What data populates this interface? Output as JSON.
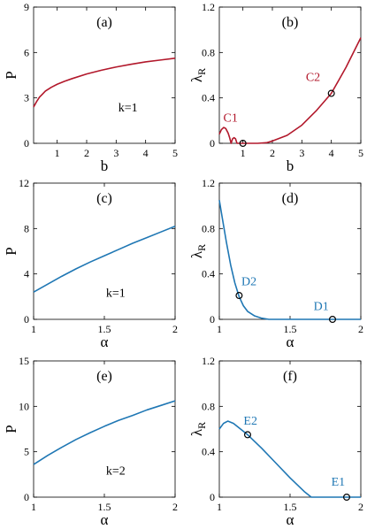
{
  "colors": {
    "red": "#b2182b",
    "blue": "#1f77b4"
  },
  "chart_data": [
    {
      "type": "line",
      "panel": "(a)",
      "xlabel": "b",
      "ylabel": "P",
      "xlim": [
        0.2,
        5
      ],
      "ylim": [
        0,
        9
      ],
      "xticks": [
        1,
        2,
        3,
        4,
        5
      ],
      "yticks": [
        0,
        3,
        6,
        9
      ],
      "color": "red",
      "x": [
        0.2,
        0.3,
        0.4,
        0.5,
        0.6,
        0.8,
        1.0,
        1.25,
        1.5,
        2.0,
        2.5,
        3.0,
        3.5,
        4.0,
        4.5,
        5.0
      ],
      "y": [
        2.4,
        2.75,
        3.05,
        3.25,
        3.45,
        3.7,
        3.9,
        4.1,
        4.27,
        4.58,
        4.83,
        5.04,
        5.22,
        5.38,
        5.5,
        5.62
      ],
      "annotations": [
        {
          "text": "k=1",
          "x": 3.4,
          "y": 2.1,
          "color": "black"
        }
      ],
      "markers": []
    },
    {
      "type": "line",
      "panel": "(b)",
      "xlabel": "b",
      "ylabel": "λ",
      "ylabel_sub": "R",
      "xlim": [
        0.2,
        5
      ],
      "ylim": [
        0,
        1.2
      ],
      "xticks": [
        1,
        2,
        3,
        4,
        5
      ],
      "yticks": [
        0,
        0.4,
        0.8,
        1.2
      ],
      "color": "red",
      "x": [
        0.2,
        0.27,
        0.35,
        0.42,
        0.5,
        0.55,
        0.6,
        0.65,
        0.7,
        0.75,
        0.8,
        1.0,
        1.5,
        1.8,
        2.0,
        2.5,
        3.0,
        3.5,
        4.0,
        4.5,
        5.0
      ],
      "y": [
        0.08,
        0.12,
        0.14,
        0.13,
        0.09,
        0.05,
        0.0,
        0.04,
        0.05,
        0.04,
        0.0,
        0.0,
        0.0,
        0.005,
        0.02,
        0.07,
        0.16,
        0.29,
        0.44,
        0.67,
        0.93
      ],
      "annotations": [
        {
          "text": "C1",
          "x": 0.58,
          "y": 0.19,
          "color": "red"
        },
        {
          "text": "C2",
          "x": 3.38,
          "y": 0.55,
          "color": "red"
        }
      ],
      "markers": [
        {
          "x": 1.0,
          "y": 0.0
        },
        {
          "x": 4.0,
          "y": 0.44
        }
      ]
    },
    {
      "type": "line",
      "panel": "(c)",
      "xlabel": "α",
      "ylabel": "P",
      "xlim": [
        1,
        2
      ],
      "ylim": [
        0,
        12
      ],
      "xticks": [
        1,
        1.5,
        2
      ],
      "yticks": [
        0,
        4,
        8,
        12
      ],
      "color": "blue",
      "x": [
        1.0,
        1.1,
        1.2,
        1.3,
        1.4,
        1.5,
        1.6,
        1.7,
        1.8,
        1.9,
        2.0
      ],
      "y": [
        2.4,
        3.1,
        3.8,
        4.45,
        5.05,
        5.6,
        6.15,
        6.7,
        7.2,
        7.7,
        8.2
      ],
      "annotations": [
        {
          "text": "k=1",
          "x": 1.58,
          "y": 2.0,
          "color": "black"
        }
      ],
      "markers": []
    },
    {
      "type": "line",
      "panel": "(d)",
      "xlabel": "α",
      "ylabel": "λ",
      "ylabel_sub": "R",
      "xlim": [
        1,
        2
      ],
      "ylim": [
        0,
        1.2
      ],
      "xticks": [
        1,
        1.5,
        2
      ],
      "yticks": [
        0,
        0.4,
        0.8,
        1.2
      ],
      "color": "blue",
      "x": [
        1.0,
        1.02,
        1.05,
        1.08,
        1.11,
        1.14,
        1.17,
        1.2,
        1.25,
        1.3,
        1.35,
        1.4,
        1.5,
        2.0
      ],
      "y": [
        1.05,
        0.9,
        0.68,
        0.48,
        0.32,
        0.2,
        0.12,
        0.07,
        0.03,
        0.01,
        0.0,
        0.0,
        0.0,
        0.0
      ],
      "annotations": [
        {
          "text": "D2",
          "x": 1.21,
          "y": 0.3,
          "color": "blue"
        },
        {
          "text": "D1",
          "x": 1.72,
          "y": 0.08,
          "color": "blue"
        }
      ],
      "markers": [
        {
          "x": 1.14,
          "y": 0.21
        },
        {
          "x": 1.8,
          "y": 0.0
        }
      ]
    },
    {
      "type": "line",
      "panel": "(e)",
      "xlabel": "α",
      "ylabel": "P",
      "xlim": [
        1,
        2
      ],
      "ylim": [
        0,
        15
      ],
      "xticks": [
        1,
        1.5,
        2
      ],
      "yticks": [
        0,
        5,
        10,
        15
      ],
      "color": "blue",
      "x": [
        1.0,
        1.1,
        1.2,
        1.3,
        1.4,
        1.5,
        1.6,
        1.7,
        1.8,
        1.9,
        2.0
      ],
      "y": [
        3.6,
        4.6,
        5.5,
        6.35,
        7.1,
        7.8,
        8.45,
        9.0,
        9.6,
        10.1,
        10.6
      ],
      "annotations": [
        {
          "text": "k=2",
          "x": 1.58,
          "y": 2.5,
          "color": "black"
        }
      ],
      "markers": []
    },
    {
      "type": "line",
      "panel": "(f)",
      "xlabel": "α",
      "ylabel": "λ",
      "ylabel_sub": "R",
      "xlim": [
        1,
        2
      ],
      "ylim": [
        0,
        1.2
      ],
      "xticks": [
        1,
        1.5,
        2
      ],
      "yticks": [
        0,
        0.4,
        0.8,
        1.2
      ],
      "color": "blue",
      "x": [
        1.0,
        1.03,
        1.06,
        1.1,
        1.15,
        1.2,
        1.3,
        1.4,
        1.5,
        1.6,
        1.65,
        2.0
      ],
      "y": [
        0.6,
        0.65,
        0.67,
        0.65,
        0.6,
        0.55,
        0.43,
        0.3,
        0.17,
        0.05,
        0.0,
        0.0
      ],
      "annotations": [
        {
          "text": "E2",
          "x": 1.22,
          "y": 0.64,
          "color": "blue"
        },
        {
          "text": "E1",
          "x": 1.84,
          "y": 0.1,
          "color": "blue"
        }
      ],
      "markers": [
        {
          "x": 1.2,
          "y": 0.55
        },
        {
          "x": 1.9,
          "y": 0.0
        }
      ]
    }
  ]
}
